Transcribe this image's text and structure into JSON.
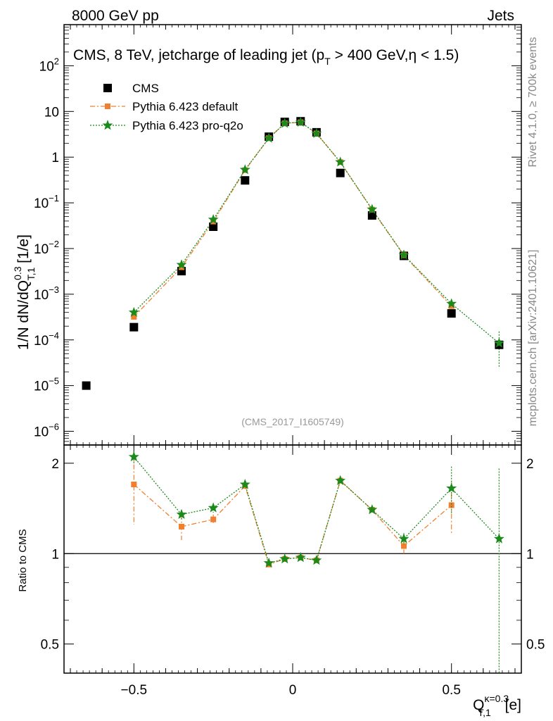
{
  "header": {
    "left": "8000 GeV pp",
    "right": "Jets"
  },
  "side_labels": {
    "rivet": "Rivet 4.1.0, ≥ 700k events",
    "mcplots": "mcplots.cern.ch [arXiv:2401.10621]"
  },
  "chart_data": [
    {
      "type": "scatter",
      "panel": "main",
      "title": "CMS, 8 TeV, jetcharge of leading jet (p_T > 400 GeV, η < 1.5)",
      "title_parts": {
        "prefix": "CMS, 8 TeV, jetcharge of leading jet (p",
        "sub": "T",
        "suffix": " > 400 GeV,η < 1.5)"
      },
      "annotation": "(CMS_2017_I1605749)",
      "ylabel": "1/N dN/dQ_T,1^0.3 [1/e]",
      "ylabel_parts": {
        "a": "1/N dN/dQ",
        "sup": "0.3",
        "sub": "T,1",
        "b": " [1/e]"
      },
      "yscale": "log",
      "xlim": [
        -0.72,
        0.72
      ],
      "ylim_log10": [
        -6.3,
        2.9
      ],
      "yticks": [
        {
          "exp": -6,
          "label": "10",
          "sup": "−6"
        },
        {
          "exp": -5,
          "label": "10",
          "sup": "−5"
        },
        {
          "exp": -4,
          "label": "10",
          "sup": "−4"
        },
        {
          "exp": -3,
          "label": "10",
          "sup": "−3"
        },
        {
          "exp": -2,
          "label": "10",
          "sup": "−2"
        },
        {
          "exp": -1,
          "label": "10",
          "sup": "−1"
        },
        {
          "exp": 0,
          "label": "1",
          "sup": ""
        },
        {
          "exp": 1,
          "label": "10",
          "sup": ""
        },
        {
          "exp": 2,
          "label": "10",
          "sup": "2"
        }
      ],
      "legend_position": "top-left",
      "series": [
        {
          "name": "CMS",
          "color": "#000000",
          "marker": "square",
          "x": [
            -0.65,
            -0.5,
            -0.35,
            -0.25,
            -0.15,
            -0.075,
            -0.025,
            0.025,
            0.075,
            0.15,
            0.25,
            0.35,
            0.5,
            0.65
          ],
          "y": [
            1e-05,
            0.00019,
            0.0032,
            0.03,
            0.31,
            2.8,
            5.9,
            6.1,
            3.5,
            0.45,
            0.053,
            0.0069,
            0.00038,
            7.8e-05
          ]
        },
        {
          "name": "Pythia 6.423 default",
          "color": "#f08030",
          "marker": "square-small",
          "line": "dashdot",
          "x": [
            -0.5,
            -0.35,
            -0.25,
            -0.15,
            -0.075,
            -0.025,
            0.025,
            0.075,
            0.15,
            0.25,
            0.35,
            0.5
          ],
          "y": [
            0.00032,
            0.0039,
            0.039,
            0.52,
            2.6,
            5.5,
            5.8,
            3.3,
            0.78,
            0.071,
            0.0071,
            0.00055
          ]
        },
        {
          "name": "Pythia 6.423 pro-q2o",
          "color": "#1a8a1a",
          "marker": "star",
          "line": "dotted",
          "x": [
            -0.5,
            -0.35,
            -0.25,
            -0.15,
            -0.075,
            -0.025,
            0.025,
            0.075,
            0.15,
            0.25,
            0.35,
            0.5,
            0.65
          ],
          "y": [
            0.0004,
            0.0044,
            0.043,
            0.53,
            2.6,
            5.5,
            5.8,
            3.3,
            0.78,
            0.072,
            0.0072,
            0.00062,
            8.5e-05
          ]
        }
      ]
    },
    {
      "type": "scatter",
      "panel": "ratio",
      "ylabel": "Ratio to CMS",
      "xlabel": "Q_T,1^κ=0.3 [e]",
      "xlabel_parts": {
        "a": "Q",
        "sup": "κ=0.3",
        "sub": "T,1",
        "b": " [e]"
      },
      "xlim": [
        -0.72,
        0.72
      ],
      "ylim": [
        0.4,
        2.3
      ],
      "yscale": "log",
      "xticks": [
        {
          "v": -0.5,
          "label": "−0.5"
        },
        {
          "v": 0,
          "label": "0"
        },
        {
          "v": 0.5,
          "label": "0.5"
        }
      ],
      "yticks": [
        {
          "v": 0.5,
          "label": "0.5"
        },
        {
          "v": 1,
          "label": "1"
        },
        {
          "v": 2,
          "label": "2"
        }
      ],
      "reference_line": 1,
      "series": [
        {
          "name": "Pythia 6.423 default",
          "color": "#f08030",
          "marker": "square-small",
          "line": "dashdot",
          "x": [
            -0.5,
            -0.35,
            -0.25,
            -0.15,
            -0.075,
            -0.025,
            0.025,
            0.075,
            0.15,
            0.25,
            0.35,
            0.5
          ],
          "y": [
            1.7,
            1.23,
            1.3,
            1.68,
            0.92,
            0.96,
            0.97,
            0.95,
            1.75,
            1.4,
            1.06,
            1.45
          ],
          "err": [
            0.45,
            0.12,
            0.05,
            0.03,
            0.01,
            0.01,
            0.01,
            0.01,
            0.03,
            0.03,
            0.06,
            0.28
          ]
        },
        {
          "name": "Pythia 6.423 pro-q2o",
          "color": "#1a8a1a",
          "marker": "star",
          "line": "dotted",
          "x": [
            -0.5,
            -0.35,
            -0.25,
            -0.15,
            -0.075,
            -0.025,
            0.025,
            0.075,
            0.15,
            0.25,
            0.35,
            0.5,
            0.65
          ],
          "y": [
            2.1,
            1.35,
            1.42,
            1.7,
            0.93,
            0.96,
            0.97,
            0.95,
            1.75,
            1.4,
            1.12,
            1.65,
            1.12
          ],
          "err": [
            0.1,
            0.05,
            0.05,
            0.03,
            0.01,
            0.01,
            0.01,
            0.01,
            0.03,
            0.03,
            0.05,
            0.3,
            0.8
          ]
        }
      ]
    }
  ]
}
